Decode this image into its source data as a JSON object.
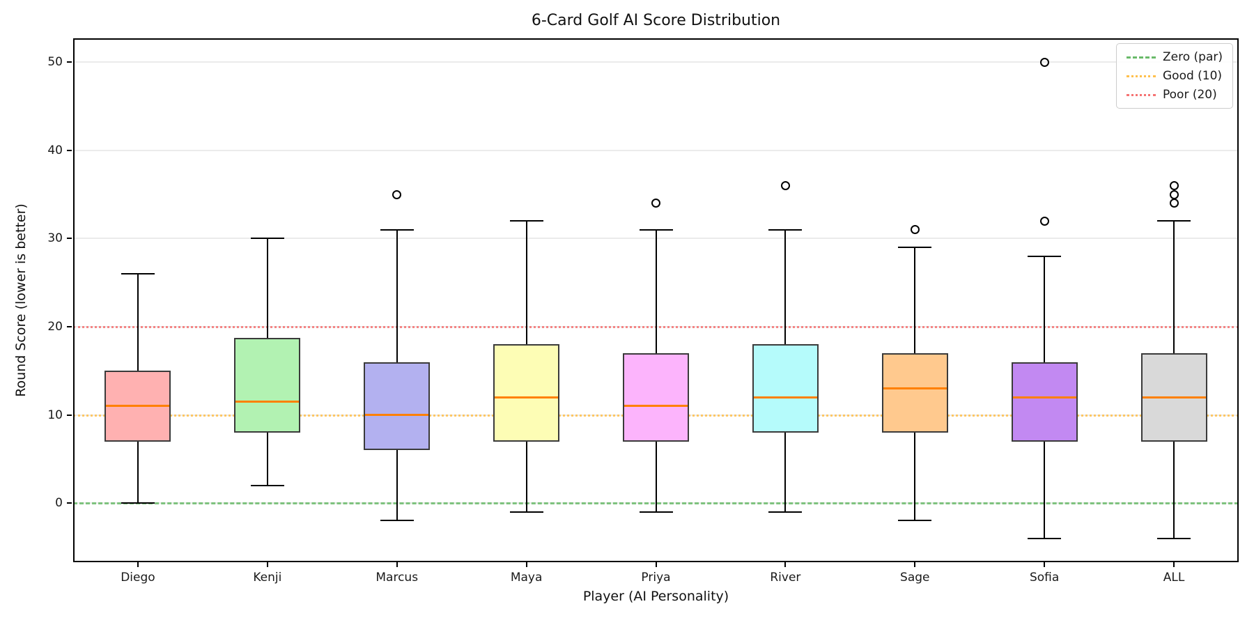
{
  "figure": {
    "title": "6-Card Golf AI Score Distribution",
    "xlabel": "Player (AI Personality)",
    "ylabel": "Round Score (lower is better)"
  },
  "chart_data": {
    "type": "box",
    "title": "6-Card Golf AI Score Distribution",
    "xlabel": "Player (AI Personality)",
    "ylabel": "Round Score (lower is better)",
    "categories": [
      "Diego",
      "Kenji",
      "Marcus",
      "Maya",
      "Priya",
      "River",
      "Sage",
      "Sofia",
      "ALL"
    ],
    "yticks": [
      0,
      10,
      20,
      30,
      40,
      50
    ],
    "ylim": [
      -6.7,
      52.7
    ],
    "grid": "horizontal",
    "legend_position": "upper right",
    "series": [
      {
        "name": "Diego",
        "whisker_low": 0,
        "q1": 7,
        "median": 11,
        "q3": 15,
        "whisker_high": 26,
        "outliers": [],
        "fill": "#ffb1b1"
      },
      {
        "name": "Kenji",
        "whisker_low": 2,
        "q1": 8,
        "median": 11.5,
        "q3": 18.75,
        "whisker_high": 30,
        "outliers": [],
        "fill": "#b2f2b2"
      },
      {
        "name": "Marcus",
        "whisker_low": -2,
        "q1": 6,
        "median": 10,
        "q3": 16,
        "whisker_high": 31,
        "outliers": [
          35
        ],
        "fill": "#b3b1f0"
      },
      {
        "name": "Maya",
        "whisker_low": -1,
        "q1": 7,
        "median": 12,
        "q3": 18,
        "whisker_high": 32,
        "outliers": [],
        "fill": "#fdfdb5"
      },
      {
        "name": "Priya",
        "whisker_low": -1,
        "q1": 7,
        "median": 11,
        "q3": 17,
        "whisker_high": 31,
        "outliers": [
          34
        ],
        "fill": "#fcb4fc"
      },
      {
        "name": "River",
        "whisker_low": -1,
        "q1": 8,
        "median": 12,
        "q3": 18,
        "whisker_high": 31,
        "outliers": [
          36
        ],
        "fill": "#b5fbfb"
      },
      {
        "name": "Sage",
        "whisker_low": -2,
        "q1": 8,
        "median": 13,
        "q3": 17,
        "whisker_high": 29,
        "outliers": [
          31
        ],
        "fill": "#ffc98e"
      },
      {
        "name": "Sofia",
        "whisker_low": -4,
        "q1": 7,
        "median": 12,
        "q3": 16,
        "whisker_high": 28,
        "outliers": [
          32,
          50
        ],
        "fill": "#c289f2"
      },
      {
        "name": "ALL",
        "whisker_low": -4,
        "q1": 7,
        "median": 12,
        "q3": 17,
        "whisker_high": 32,
        "outliers": [
          34,
          35,
          36
        ],
        "fill": "#d9d9d9"
      }
    ],
    "reference_lines": [
      {
        "label": "Zero (par)",
        "value": 0,
        "color": "#6aba6a",
        "style": "dashed"
      },
      {
        "label": "Good (10)",
        "value": 10,
        "color": "#ffc04d",
        "style": "dotted"
      },
      {
        "label": "Poor (20)",
        "value": 20,
        "color": "#f57373",
        "style": "dotted"
      }
    ],
    "colors": {
      "median": "#ff8000",
      "box_edge": "#3a3a3a",
      "whisker": "#000000",
      "grid": "#ebebeb"
    }
  }
}
